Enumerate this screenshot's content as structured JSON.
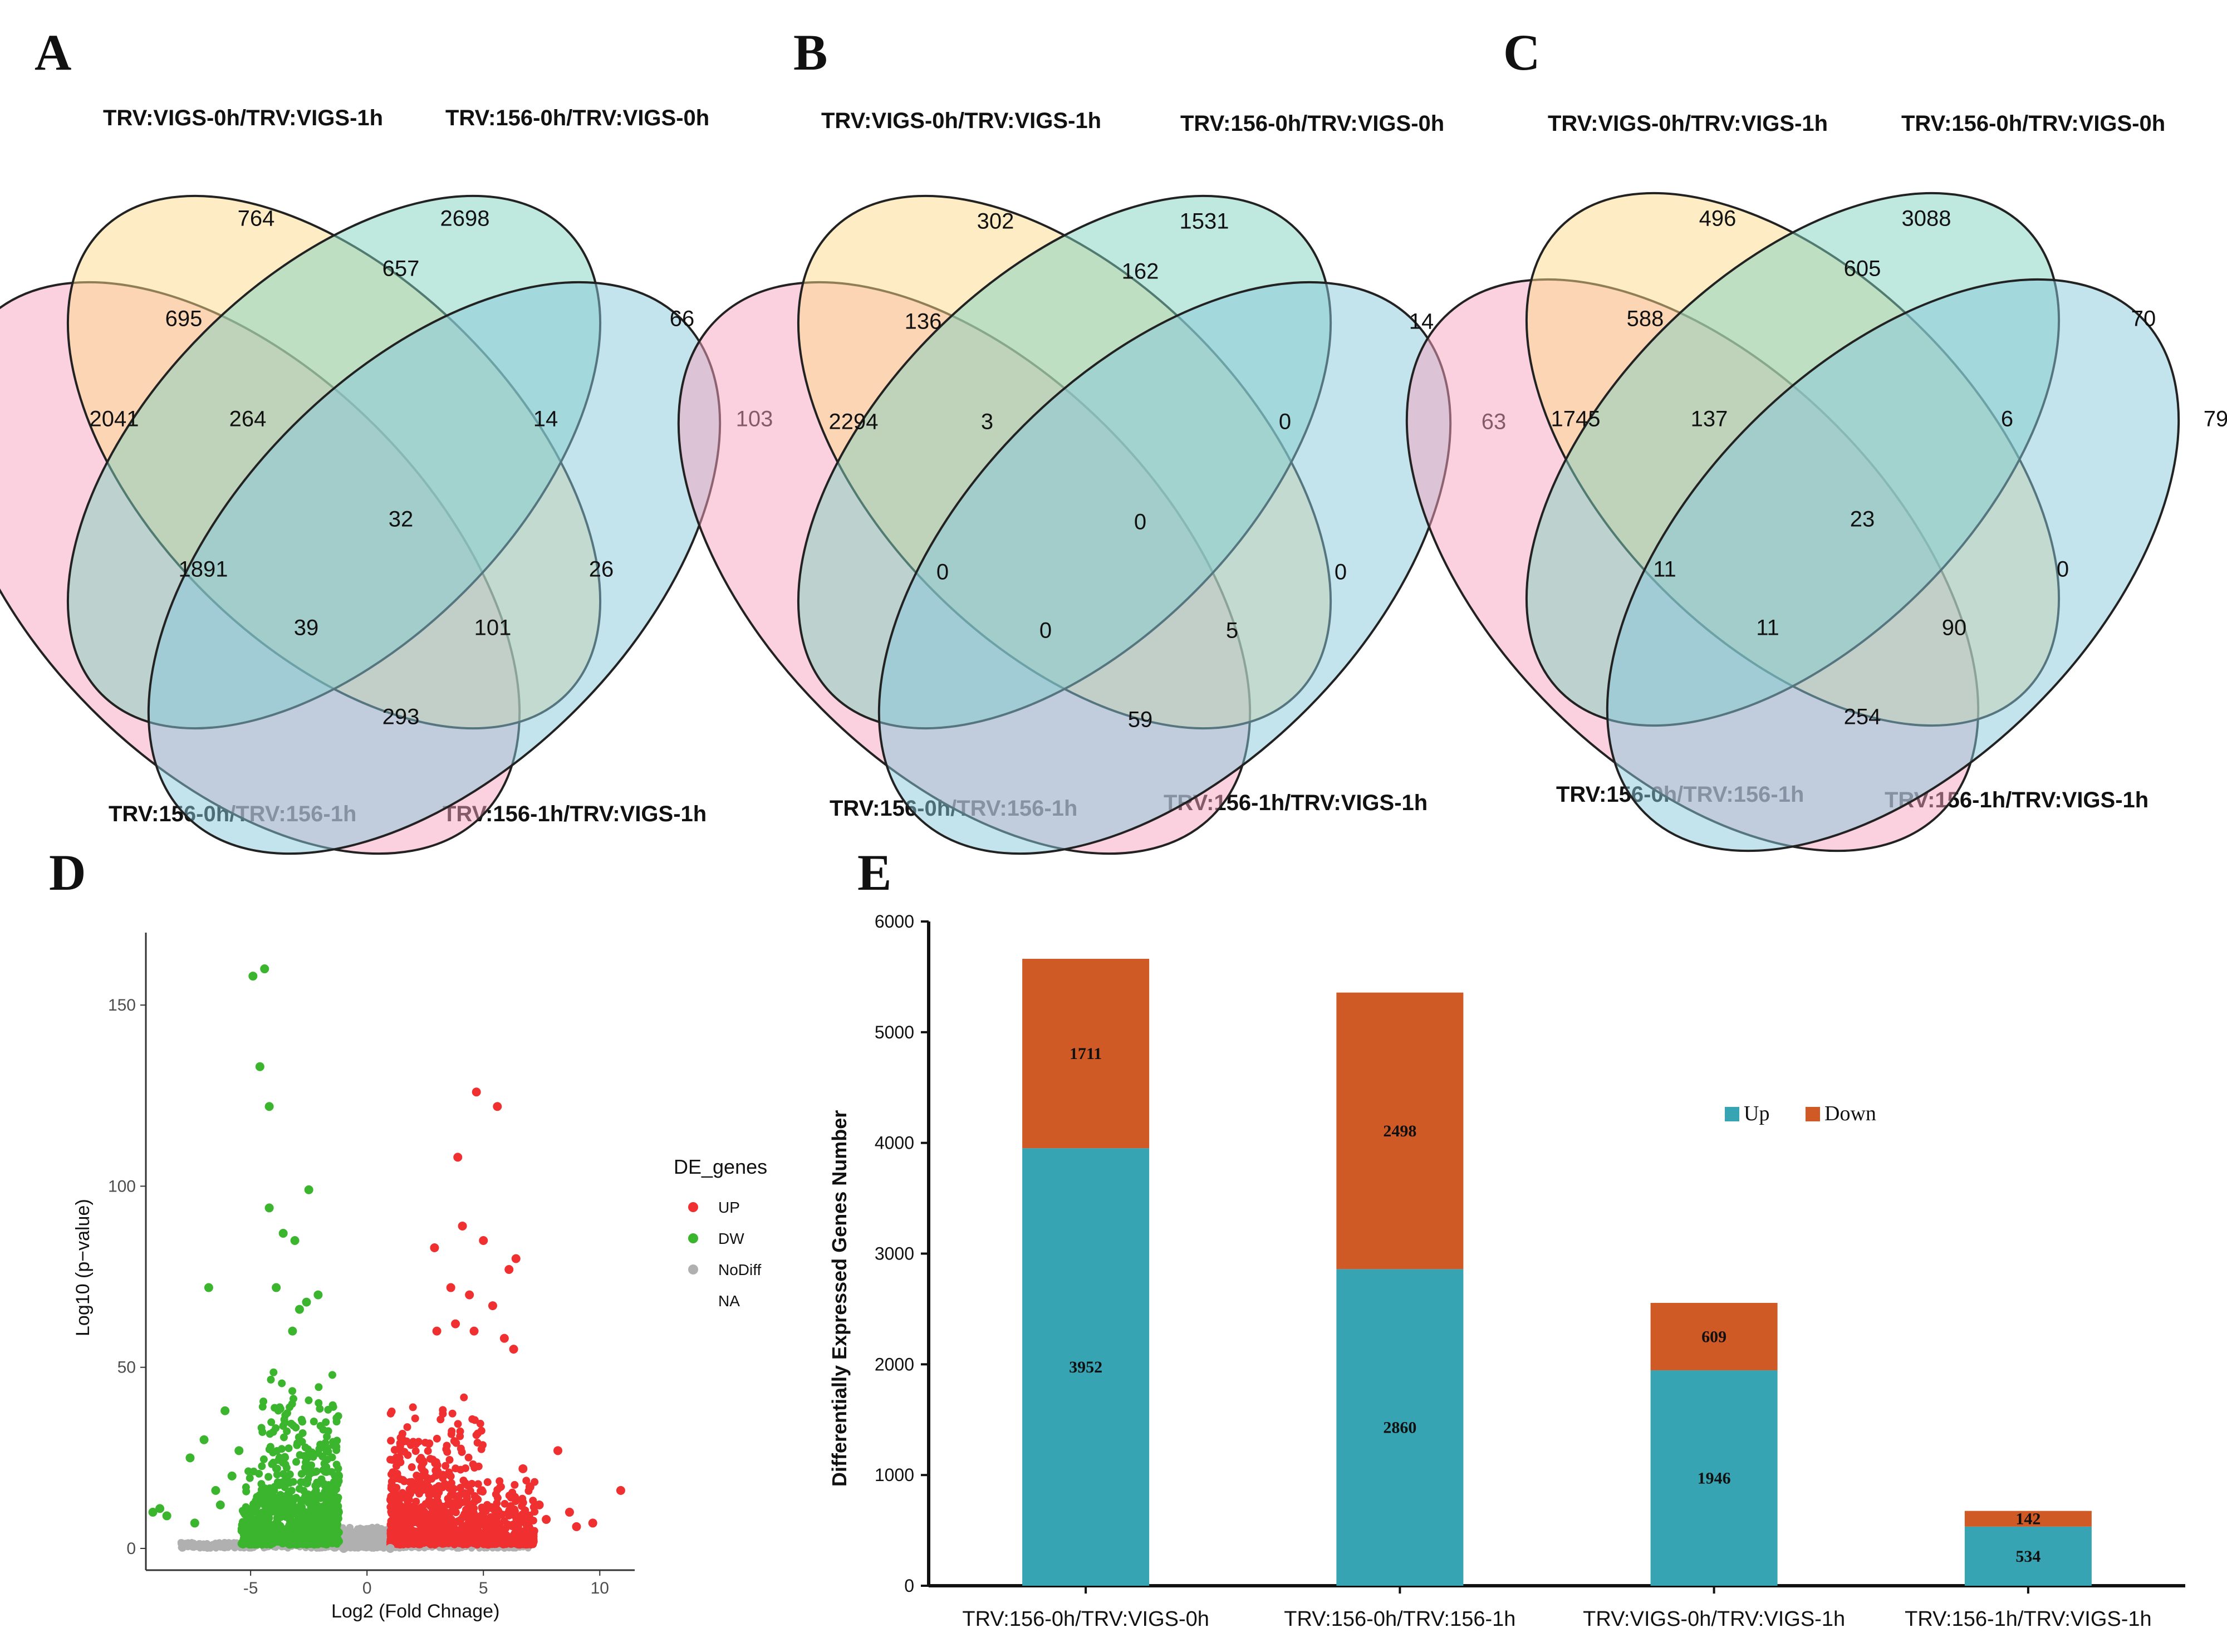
{
  "panels": {
    "A": "A",
    "B": "B",
    "C": "C",
    "D": "D",
    "E": "E"
  },
  "venn": {
    "sets": {
      "s1": "TRV:VIGS-0h/TRV:VIGS-1h",
      "s2": "TRV:156-0h/TRV:VIGS-0h",
      "s3": "TRV:156-0h/TRV:156-1h",
      "s4": "TRV:156-1h/TRV:VIGS-1h"
    },
    "colors": {
      "pink": "#f8a3c0",
      "yellow": "#fdd98c",
      "green": "#7fd1bf",
      "blue": "#88c8dc",
      "stroke": "#222222"
    },
    "A": [
      764,
      2698,
      657,
      695,
      66,
      2041,
      264,
      14,
      103,
      32,
      1891,
      26,
      39,
      101,
      293
    ],
    "B": [
      302,
      1531,
      162,
      136,
      14,
      2294,
      3,
      0,
      63,
      0,
      0,
      0,
      0,
      5,
      59
    ],
    "C": [
      496,
      3088,
      605,
      588,
      70,
      1745,
      137,
      6,
      79,
      23,
      11,
      0,
      11,
      90,
      254
    ]
  },
  "chart_data": [
    {
      "type": "scatter",
      "panel": "D",
      "title": "",
      "xlabel": "Log2 (Fold Chnage)",
      "ylabel": "Log10 (p−value)",
      "xlim": [
        -9.5,
        11.5
      ],
      "ylim": [
        -6,
        170
      ],
      "xticks": [
        -5,
        0,
        5,
        10
      ],
      "yticks": [
        0,
        50,
        100,
        150
      ],
      "legend": {
        "title": "DE_genes",
        "position": "right",
        "entries": [
          "UP",
          "DW",
          "NoDiff",
          "NA"
        ],
        "colors": [
          "#f03030",
          "#3bb52d",
          "#b0b0b0",
          "#ffffff"
        ]
      },
      "series": [
        {
          "name": "UP",
          "points": [
            [
              4.7,
              126
            ],
            [
              5.6,
              122
            ],
            [
              3.9,
              108
            ],
            [
              4.1,
              89
            ],
            [
              5.0,
              85
            ],
            [
              2.9,
              83
            ],
            [
              6.4,
              80
            ],
            [
              6.1,
              77
            ],
            [
              3.6,
              72
            ],
            [
              4.4,
              70
            ],
            [
              5.4,
              67
            ],
            [
              3.8,
              62
            ],
            [
              4.6,
              60
            ],
            [
              5.9,
              58
            ],
            [
              3.0,
              60
            ],
            [
              6.3,
              55
            ],
            [
              8.2,
              27
            ],
            [
              10.9,
              16
            ],
            [
              9.7,
              7
            ],
            [
              9.0,
              6
            ],
            [
              8.7,
              10
            ],
            [
              7.4,
              12
            ],
            [
              7.0,
              17
            ],
            [
              6.7,
              22
            ],
            [
              7.7,
              8
            ]
          ]
        },
        {
          "name": "DW",
          "points": [
            [
              -4.4,
              160
            ],
            [
              -4.9,
              158
            ],
            [
              -4.6,
              133
            ],
            [
              -4.2,
              122
            ],
            [
              -2.5,
              99
            ],
            [
              -4.2,
              94
            ],
            [
              -3.6,
              87
            ],
            [
              -3.1,
              85
            ],
            [
              -6.8,
              72
            ],
            [
              -3.9,
              72
            ],
            [
              -2.1,
              70
            ],
            [
              -2.6,
              68
            ],
            [
              -2.9,
              66
            ],
            [
              -3.2,
              60
            ],
            [
              -6.1,
              38
            ],
            [
              -7.0,
              30
            ],
            [
              -7.6,
              25
            ],
            [
              -8.6,
              9
            ],
            [
              -9.2,
              10
            ],
            [
              -8.9,
              11
            ],
            [
              -7.4,
              7
            ],
            [
              -6.5,
              16
            ],
            [
              -5.8,
              20
            ],
            [
              -5.5,
              27
            ],
            [
              -6.3,
              12
            ]
          ]
        },
        {
          "name": "NoDiff",
          "points": [
            [
              -1,
              0
            ],
            [
              1,
              0
            ]
          ]
        }
      ]
    },
    {
      "type": "bar",
      "panel": "E",
      "stacked": true,
      "categories": [
        "TRV:156-0h/TRV:VIGS-0h",
        "TRV:156-0h/TRV:156-1h",
        "TRV:VIGS-0h/TRV:VIGS-1h",
        "TRV:156-1h/TRV:VIGS-1h"
      ],
      "series": [
        {
          "name": "Up",
          "color": "#36a4b3",
          "values": [
            3952,
            2860,
            1946,
            534
          ]
        },
        {
          "name": "Down",
          "color": "#cf5a26",
          "values": [
            1711,
            2498,
            609,
            142
          ]
        }
      ],
      "ylabel": "Differentially Expressed Genes Number",
      "xlabel": "",
      "ylim": [
        0,
        6000
      ],
      "yticks": [
        0,
        1000,
        2000,
        3000,
        4000,
        5000,
        6000
      ],
      "legend_position": "right"
    }
  ]
}
